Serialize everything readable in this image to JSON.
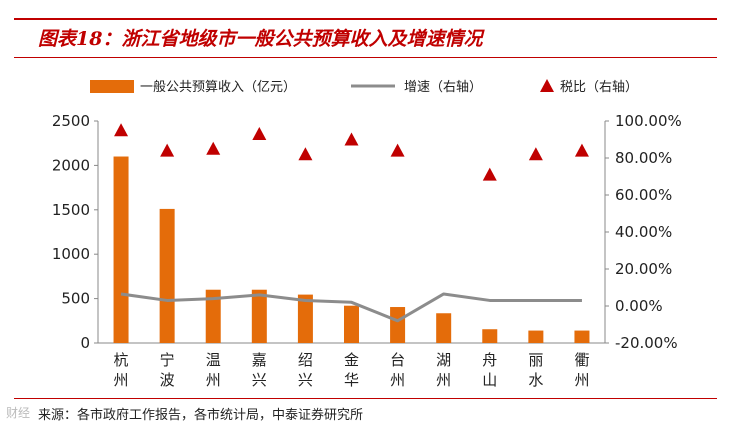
{
  "figure": {
    "title": "图表18：浙江省地级市一般公共预算收入及增速情况",
    "source": "来源：各市政府工作报告，各市统计局，中泰证券研究所",
    "watermark": "财经"
  },
  "chart_data": {
    "type": "bar",
    "categories": [
      "杭州",
      "宁波",
      "温州",
      "嘉兴",
      "绍兴",
      "金华",
      "台州",
      "湖州",
      "舟山",
      "丽水",
      "衢州"
    ],
    "series": [
      {
        "name": "一般公共预算收入（亿元）",
        "type": "bar",
        "axis": "left",
        "color": "#e46c0a",
        "values": [
          2100,
          1510,
          600,
          600,
          545,
          420,
          405,
          335,
          155,
          140,
          140
        ]
      },
      {
        "name": "增速（右轴）",
        "type": "line",
        "axis": "right",
        "color": "#8c8c8c",
        "values": [
          6.5,
          3.0,
          4.0,
          6.0,
          3.0,
          2.0,
          -8.0,
          6.5,
          3.0,
          3.0,
          3.0
        ]
      },
      {
        "name": "税比（右轴）",
        "type": "scatter",
        "marker": "triangle",
        "axis": "right",
        "color": "#c00000",
        "values": [
          95,
          84,
          85,
          93,
          82,
          90,
          84,
          null,
          71,
          82,
          84
        ]
      }
    ],
    "y_left": {
      "min": 0,
      "max": 2500,
      "ticks": [
        "0",
        "500",
        "1000",
        "1500",
        "2000",
        "2500"
      ]
    },
    "y_right": {
      "min": -20,
      "max": 100,
      "ticks": [
        "-20.00%",
        "0.00%",
        "20.00%",
        "40.00%",
        "60.00%",
        "80.00%",
        "100.00%"
      ]
    },
    "legend_position": "top",
    "grid": false
  }
}
